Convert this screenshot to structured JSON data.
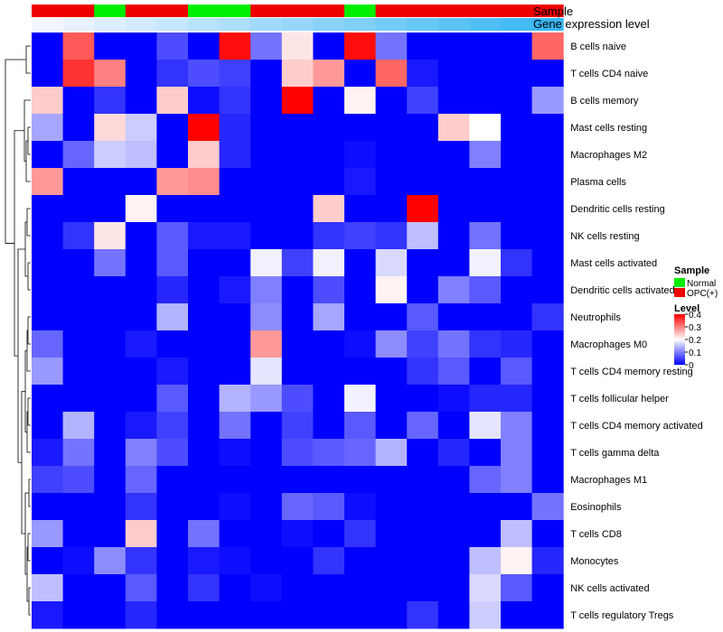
{
  "chart_data": {
    "type": "heatmap",
    "annotation_labels": [
      "Sample",
      "Gene expression level"
    ],
    "columns": 17,
    "sample_groups": [
      "OPC(+)",
      "OPC(+)",
      "Normal",
      "OPC(+)",
      "OPC(+)",
      "Normal",
      "Normal",
      "OPC(+)",
      "OPC(+)",
      "OPC(+)",
      "Normal",
      "OPC(+)",
      "OPC(+)",
      "OPC(+)",
      "OPC(+)",
      "OPC(+)",
      "OPC(+)"
    ],
    "gene_expression_level": [
      1,
      2,
      3,
      4,
      5,
      6,
      7,
      8,
      9,
      10,
      11,
      12,
      13,
      14,
      15,
      16,
      17
    ],
    "row_labels": [
      "B cells naive",
      "T cells CD4 naive",
      "B cells memory",
      "Mast cells resting",
      "Macrophages M2",
      "Plasma cells",
      "Dendritic cells resting",
      "NK cells resting",
      "Mast cells activated",
      "Dendritic cells activated",
      "Neutrophils",
      "Macrophages M0",
      "T cells CD4 memory resting",
      "T cells follicular helper",
      "T cells CD4 memory activated",
      "T cells gamma delta",
      "Macrophages M1",
      "Eosinophils",
      "T cells CD8",
      "Monocytes",
      "NK cells activated",
      "T cells regulatory  Tregs"
    ],
    "values": [
      [
        0.0,
        0.33,
        0.0,
        0.0,
        0.06,
        0.0,
        0.39,
        0.09,
        0.22,
        0.0,
        0.39,
        0.09,
        0.0,
        0.0,
        0.0,
        0.0,
        0.32
      ],
      [
        0.0,
        0.36,
        0.3,
        0.0,
        0.04,
        0.06,
        0.05,
        0.0,
        0.24,
        0.28,
        0.0,
        0.32,
        0.02,
        0.0,
        0.0,
        0.0,
        0.0
      ],
      [
        0.24,
        0.0,
        0.04,
        0.0,
        0.24,
        0.01,
        0.04,
        0.0,
        0.4,
        0.0,
        0.21,
        0.0,
        0.05,
        0.0,
        0.0,
        0.0,
        0.12
      ],
      [
        0.13,
        0.0,
        0.23,
        0.16,
        0.0,
        0.4,
        0.03,
        0.0,
        0.0,
        0.0,
        0.0,
        0.0,
        0.0,
        0.24,
        0.2,
        0.0,
        0.0
      ],
      [
        0.0,
        0.08,
        0.16,
        0.15,
        0.0,
        0.24,
        0.03,
        0.0,
        0.0,
        0.0,
        0.01,
        0.0,
        0.0,
        0.0,
        0.1,
        0.0,
        0.0
      ],
      [
        0.28,
        0.0,
        0.0,
        0.0,
        0.28,
        0.29,
        0.0,
        0.0,
        0.0,
        0.0,
        0.02,
        0.0,
        0.0,
        0.0,
        0.0,
        0.0,
        0.0
      ],
      [
        0.0,
        0.0,
        0.0,
        0.21,
        0.0,
        0.0,
        0.0,
        0.0,
        0.0,
        0.24,
        0.0,
        0.0,
        0.4,
        0.0,
        0.0,
        0.0,
        0.0
      ],
      [
        0.0,
        0.04,
        0.22,
        0.0,
        0.07,
        0.02,
        0.02,
        0.0,
        0.0,
        0.04,
        0.05,
        0.04,
        0.15,
        0.0,
        0.09,
        0.0,
        0.0
      ],
      [
        0.0,
        0.0,
        0.09,
        0.0,
        0.07,
        0.0,
        0.0,
        0.19,
        0.05,
        0.19,
        0.0,
        0.17,
        0.0,
        0.0,
        0.19,
        0.04,
        0.0
      ],
      [
        0.0,
        0.0,
        0.0,
        0.0,
        0.03,
        0.0,
        0.02,
        0.1,
        0.0,
        0.06,
        0.0,
        0.21,
        0.0,
        0.1,
        0.07,
        0.0,
        0.0
      ],
      [
        0.0,
        0.0,
        0.0,
        0.0,
        0.14,
        0.0,
        0.0,
        0.11,
        0.0,
        0.13,
        0.0,
        0.0,
        0.07,
        0.0,
        0.0,
        0.0,
        0.04
      ],
      [
        0.08,
        0.0,
        0.0,
        0.02,
        0.0,
        0.0,
        0.0,
        0.28,
        0.0,
        0.0,
        0.01,
        0.11,
        0.05,
        0.09,
        0.04,
        0.03,
        0.0
      ],
      [
        0.12,
        0.0,
        0.0,
        0.0,
        0.02,
        0.0,
        0.0,
        0.18,
        0.0,
        0.0,
        0.0,
        0.0,
        0.04,
        0.07,
        0.0,
        0.07,
        0.0
      ],
      [
        0.0,
        0.0,
        0.0,
        0.0,
        0.07,
        0.0,
        0.14,
        0.12,
        0.06,
        0.0,
        0.19,
        0.0,
        0.0,
        0.01,
        0.03,
        0.03,
        0.0
      ],
      [
        0.0,
        0.14,
        0.0,
        0.02,
        0.05,
        0.0,
        0.09,
        0.0,
        0.05,
        0.0,
        0.07,
        0.0,
        0.08,
        0.0,
        0.18,
        0.1,
        0.0
      ],
      [
        0.02,
        0.09,
        0.0,
        0.1,
        0.06,
        0.0,
        0.01,
        0.0,
        0.06,
        0.07,
        0.08,
        0.14,
        0.0,
        0.03,
        0.0,
        0.1,
        0.0
      ],
      [
        0.05,
        0.06,
        0.0,
        0.08,
        0.0,
        0.0,
        0.0,
        0.0,
        0.0,
        0.0,
        0.0,
        0.0,
        0.0,
        0.0,
        0.08,
        0.1,
        0.0
      ],
      [
        0.0,
        0.0,
        0.0,
        0.04,
        0.0,
        0.0,
        0.01,
        0.0,
        0.08,
        0.07,
        0.01,
        0.0,
        0.0,
        0.0,
        0.0,
        0.0,
        0.09
      ],
      [
        0.12,
        0.0,
        0.0,
        0.24,
        0.0,
        0.09,
        0.0,
        0.0,
        0.01,
        0.0,
        0.04,
        0.0,
        0.0,
        0.0,
        0.0,
        0.15,
        0.0
      ],
      [
        0.0,
        0.01,
        0.11,
        0.04,
        0.0,
        0.02,
        0.01,
        0.0,
        0.0,
        0.04,
        0.0,
        0.0,
        0.0,
        0.0,
        0.15,
        0.21,
        0.03
      ],
      [
        0.15,
        0.0,
        0.0,
        0.07,
        0.0,
        0.04,
        0.0,
        0.01,
        0.0,
        0.0,
        0.0,
        0.0,
        0.0,
        0.0,
        0.17,
        0.07,
        0.0
      ],
      [
        0.02,
        0.0,
        0.0,
        0.03,
        0.0,
        0.0,
        0.0,
        0.0,
        0.0,
        0.0,
        0.0,
        0.0,
        0.04,
        0.0,
        0.16,
        0.0,
        0.0
      ]
    ],
    "legend": {
      "sample_title": "Sample",
      "sample_items": [
        {
          "label": "Normal",
          "color": "#00ee00"
        },
        {
          "label": "OPC(+)",
          "color": "#ee0000"
        }
      ],
      "level_title": "Level",
      "level_range": [
        0,
        0.4
      ],
      "level_ticks": [
        "0.4",
        "0.3",
        "0.2",
        "0.1",
        "0"
      ],
      "level_tick_values": [
        0.4,
        0.3,
        0.2,
        0.1,
        0
      ]
    },
    "colors": {
      "low": "#0000ff",
      "mid": "#ffffff",
      "high": "#ff0000",
      "mid_value": 0.2,
      "expr_low": "#f4f6ff",
      "expr_high": "#38b7f2"
    },
    "dendrogram": "row dendrogram on left side"
  }
}
